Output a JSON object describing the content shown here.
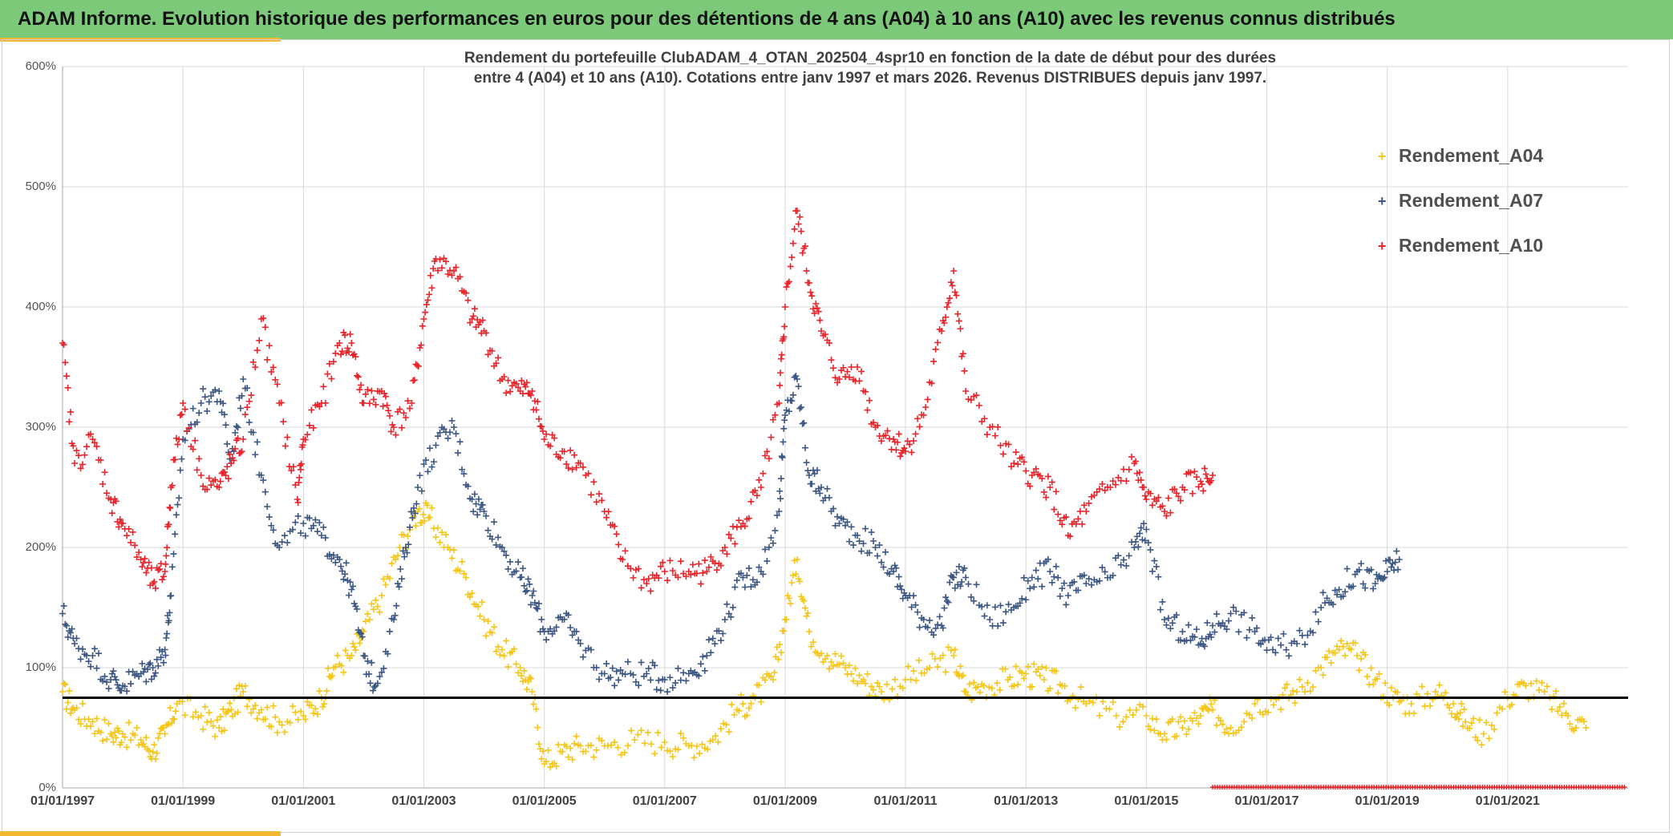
{
  "banner": {
    "text": "ADAM Informe. Evolution historique des performances en euros pour des détentions de 4 ans (A04) à 10 ans (A10) avec les revenus connus distribués"
  },
  "colors": {
    "banner": "#7dc97a",
    "accent": "#f2b830",
    "A04": "#f5c518",
    "A07": "#3b5683",
    "A10": "#e8242a",
    "reference_line": "#000000"
  },
  "chart_data": {
    "type": "scatter",
    "title_line1": "Rendement du portefeuille ClubADAM_4_OTAN_202504_4spr10  en fonction de la date de début pour des durées",
    "title_line2": "entre 4 (A04) et 10 ans (A10). Cotations entre janv 1997 et mars 2026. Revenus DISTRIBUES depuis janv 1997.",
    "xlabel": "",
    "ylabel": "",
    "x_range": [
      1997.0,
      2023.0
    ],
    "ylim": [
      0,
      600
    ],
    "grid": true,
    "legend_position": "top-right",
    "y_ticks": [
      "0%",
      "100%",
      "200%",
      "300%",
      "400%",
      "500%",
      "600%"
    ],
    "x_tick_labels": [
      "01/01/1997",
      "01/01/1999",
      "01/01/2001",
      "01/01/2003",
      "01/01/2005",
      "01/01/2007",
      "01/01/2009",
      "01/01/2011",
      "01/01/2013",
      "01/01/2015",
      "01/01/2017",
      "01/01/2019",
      "01/01/2021"
    ],
    "x_tick_values": [
      1997,
      1999,
      2001,
      2003,
      2005,
      2007,
      2009,
      2011,
      2013,
      2015,
      2017,
      2019,
      2021
    ],
    "reference_line_y": 75,
    "series": [
      {
        "name": "Rendement_A04",
        "x": [
          1997.0,
          1997.2,
          1997.5,
          1997.8,
          1998.0,
          1998.3,
          1998.5,
          1998.7,
          1998.9,
          1999.3,
          1999.6,
          1999.8,
          2000.0,
          2000.3,
          2000.6,
          2001.0,
          2001.3,
          2001.5,
          2001.8,
          2002.0,
          2002.3,
          2002.6,
          2002.9,
          2003.1,
          2003.4,
          2003.7,
          2004.0,
          2004.3,
          2004.6,
          2004.8,
          2005.0,
          2005.3,
          2005.6,
          2006.0,
          2006.5,
          2007.0,
          2007.4,
          2007.8,
          2008.2,
          2008.5,
          2008.8,
          2009.0,
          2009.2,
          2009.4,
          2009.7,
          2010.0,
          2010.3,
          2010.6,
          2011.0,
          2011.4,
          2011.8,
          2012.0,
          2012.3,
          2012.7,
          2013.0,
          2013.3,
          2013.6,
          2014.0,
          2014.5,
          2015.0,
          2015.3,
          2015.6,
          2015.9,
          2016.1,
          2016.4,
          2016.8,
          2017.2,
          2017.5,
          2017.9,
          2018.2,
          2018.5,
          2018.8,
          2019.1,
          2019.4,
          2019.8,
          2020.1,
          2020.3,
          2020.6,
          2021.0,
          2021.3,
          2021.7,
          2022.0,
          2022.3
        ],
        "values": [
          80,
          65,
          55,
          45,
          45,
          40,
          30,
          45,
          70,
          60,
          50,
          65,
          80,
          65,
          55,
          60,
          75,
          100,
          110,
          130,
          160,
          200,
          230,
          225,
          200,
          175,
          140,
          115,
          100,
          80,
          20,
          30,
          35,
          35,
          40,
          38,
          35,
          40,
          65,
          75,
          90,
          140,
          190,
          130,
          110,
          100,
          90,
          80,
          90,
          100,
          110,
          80,
          85,
          90,
          95,
          90,
          85,
          70,
          60,
          60,
          45,
          50,
          60,
          65,
          50,
          70,
          75,
          80,
          100,
          115,
          110,
          90,
          75,
          70,
          80,
          70,
          55,
          45,
          75,
          85,
          75,
          60,
          50
        ]
      },
      {
        "name": "Rendement_A07",
        "x": [
          1997.0,
          1997.2,
          1997.5,
          1997.8,
          1998.0,
          1998.3,
          1998.5,
          1998.7,
          1998.8,
          1999.0,
          1999.3,
          1999.6,
          1999.8,
          2000.0,
          2000.3,
          2000.6,
          2001.0,
          2001.3,
          2001.6,
          2001.8,
          2002.0,
          2002.2,
          2002.5,
          2002.7,
          2002.9,
          2003.2,
          2003.5,
          2003.8,
          2004.0,
          2004.3,
          2004.6,
          2004.8,
          2005.0,
          2005.3,
          2005.6,
          2006.0,
          2006.3,
          2006.7,
          2007.0,
          2007.4,
          2007.7,
          2008.0,
          2008.3,
          2008.6,
          2008.9,
          2009.0,
          2009.2,
          2009.4,
          2009.6,
          2009.9,
          2010.2,
          2010.5,
          2010.8,
          2011.0,
          2011.3,
          2011.6,
          2011.8,
          2012.0,
          2012.4,
          2012.8,
          2013.1,
          2013.4,
          2013.7,
          2014.0,
          2014.4,
          2014.8,
          2015.0,
          2015.3,
          2015.6,
          2015.9,
          2016.1,
          2016.4,
          2016.8,
          2017.1,
          2017.5,
          2017.9,
          2018.2,
          2018.5,
          2018.8,
          2019.0,
          2019.2
        ],
        "values": [
          145,
          120,
          110,
          90,
          85,
          95,
          100,
          115,
          160,
          290,
          320,
          330,
          270,
          340,
          260,
          200,
          220,
          210,
          190,
          165,
          110,
          85,
          140,
          200,
          250,
          285,
          300,
          240,
          230,
          200,
          175,
          160,
          130,
          140,
          120,
          95,
          95,
          95,
          90,
          95,
          110,
          140,
          175,
          180,
          230,
          310,
          340,
          260,
          250,
          220,
          210,
          200,
          180,
          160,
          140,
          135,
          175,
          175,
          140,
          150,
          175,
          180,
          160,
          170,
          175,
          200,
          215,
          140,
          130,
          120,
          135,
          145,
          130,
          115,
          120,
          150,
          165,
          180,
          170,
          180,
          190
        ]
      },
      {
        "name": "Rendement_A10",
        "x": [
          1997.0,
          1997.2,
          1997.5,
          1997.8,
          1998.0,
          1998.3,
          1998.5,
          1998.7,
          1998.8,
          1999.0,
          1999.3,
          1999.6,
          1999.8,
          2000.0,
          2000.3,
          2000.6,
          2000.9,
          2001.0,
          2001.3,
          2001.6,
          2001.8,
          2002.0,
          2002.3,
          2002.5,
          2002.8,
          2003.0,
          2003.2,
          2003.5,
          2003.8,
          2004.0,
          2004.3,
          2004.6,
          2004.8,
          2005.0,
          2005.3,
          2005.6,
          2006.0,
          2006.3,
          2006.7,
          2007.0,
          2007.4,
          2007.7,
          2008.0,
          2008.3,
          2008.6,
          2008.9,
          2009.0,
          2009.2,
          2009.4,
          2009.6,
          2009.9,
          2010.2,
          2010.5,
          2010.8,
          2011.0,
          2011.3,
          2011.6,
          2011.8,
          2012.0,
          2012.4,
          2012.8,
          2013.1,
          2013.4,
          2013.7,
          2014.0,
          2014.4,
          2014.8,
          2015.0,
          2015.3,
          2015.6,
          2015.9,
          2016.1
        ],
        "values": [
          370,
          270,
          290,
          240,
          220,
          190,
          170,
          180,
          250,
          320,
          260,
          250,
          270,
          290,
          390,
          320,
          240,
          290,
          320,
          370,
          370,
          320,
          330,
          300,
          320,
          390,
          440,
          430,
          390,
          380,
          340,
          330,
          330,
          290,
          280,
          270,
          230,
          190,
          170,
          180,
          180,
          180,
          200,
          220,
          250,
          320,
          400,
          480,
          420,
          380,
          340,
          350,
          300,
          290,
          280,
          310,
          380,
          430,
          330,
          300,
          270,
          260,
          250,
          210,
          230,
          250,
          270,
          240,
          230,
          250,
          255,
          260
        ]
      }
    ],
    "legend": [
      "Rendement_A04",
      "Rendement_A07",
      "Rendement_A10"
    ]
  }
}
